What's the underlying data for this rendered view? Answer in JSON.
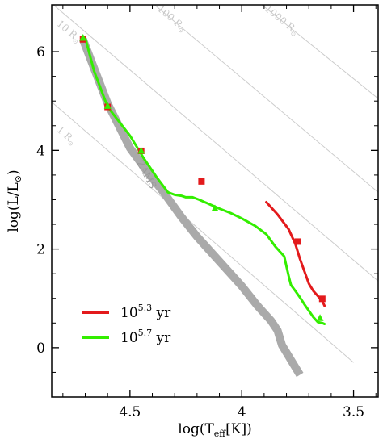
{
  "chart_data": {
    "type": "line",
    "xlabel_main": "log(T",
    "xlabel_sub": "eff",
    "xlabel_tail": "[K])",
    "ylabel_main": "log(L/L",
    "ylabel_sym": "⊙",
    "ylabel_tail": ")",
    "xlim": [
      4.85,
      3.39
    ],
    "ylim": [
      -1.0,
      6.95
    ],
    "x_ticks": [
      4.5,
      4.0,
      3.5
    ],
    "x_tick_labels": [
      "4.5",
      "4",
      "3.5"
    ],
    "y_ticks": [
      0,
      2,
      4,
      6
    ],
    "y_tick_labels": [
      "0",
      "2",
      "4",
      "6"
    ],
    "radius_lines": [
      {
        "label": "1 R",
        "sub": "⊙",
        "label_x": 4.83,
        "label_y": 4.4,
        "x": [
          4.85,
          3.5
        ],
        "y": [
          4.98,
          -0.3
        ]
      },
      {
        "label": "10 R",
        "sub": "⊙",
        "label_x": 4.83,
        "label_y": 6.55,
        "x": [
          4.85,
          3.39
        ],
        "y": [
          6.98,
          1.35
        ]
      },
      {
        "label": "100 R",
        "sub": "⊙",
        "label_x": 4.38,
        "label_y": 6.85,
        "x": [
          4.39,
          3.39
        ],
        "y": [
          6.95,
          3.15
        ]
      },
      {
        "label": "1000 R",
        "sub": "⊙",
        "label_x": 3.9,
        "label_y": 6.85,
        "x": [
          3.91,
          3.39
        ],
        "y": [
          6.95,
          5.05
        ]
      }
    ],
    "zams": {
      "label": "ZAMS",
      "label_x": 4.47,
      "label_y": 3.75,
      "x": [
        4.71,
        4.6,
        4.5,
        4.42,
        4.35,
        4.27,
        4.2,
        4.1,
        4.0,
        3.93,
        3.87,
        3.84,
        3.82,
        3.78,
        3.74
      ],
      "y": [
        6.25,
        4.95,
        4.05,
        3.55,
        3.15,
        2.65,
        2.25,
        1.75,
        1.25,
        0.85,
        0.55,
        0.35,
        0.05,
        -0.25,
        -0.55
      ]
    },
    "series": [
      {
        "name": "10",
        "exp": "5.3",
        "unit": " yr",
        "color": "#e31a1c",
        "x": [
          3.89,
          3.84,
          3.79,
          3.76,
          3.74,
          3.72,
          3.7,
          3.68,
          3.66,
          3.64,
          3.63
        ],
        "y": [
          2.95,
          2.7,
          2.4,
          2.1,
          1.8,
          1.55,
          1.3,
          1.15,
          1.05,
          0.95,
          0.85
        ],
        "markers": {
          "shape": "square",
          "x": [
            4.71,
            4.6,
            4.45,
            4.18,
            3.75,
            3.64
          ],
          "y": [
            6.25,
            4.88,
            3.99,
            3.37,
            2.15,
            0.99
          ]
        }
      },
      {
        "name": "10",
        "exp": "5.7",
        "unit": " yr",
        "color": "#33ee00",
        "x": [
          4.7,
          4.66,
          4.6,
          4.5,
          4.44,
          4.38,
          4.33,
          4.3,
          4.27,
          4.25,
          4.22,
          4.19,
          4.15,
          4.1,
          4.05,
          4.0,
          3.94,
          3.89,
          3.85,
          3.81,
          3.8,
          3.79,
          3.78,
          3.76,
          3.74,
          3.72,
          3.7,
          3.68,
          3.66,
          3.64,
          3.63
        ],
        "y": [
          6.28,
          5.6,
          4.88,
          4.3,
          3.85,
          3.45,
          3.15,
          3.1,
          3.08,
          3.05,
          3.05,
          3.0,
          2.92,
          2.82,
          2.73,
          2.62,
          2.47,
          2.3,
          2.05,
          1.85,
          1.65,
          1.45,
          1.27,
          1.15,
          1.02,
          0.88,
          0.75,
          0.62,
          0.52,
          0.5,
          0.48
        ],
        "markers": {
          "shape": "triangle",
          "x": [
            4.71,
            4.6,
            4.45,
            4.12,
            3.65
          ],
          "y": [
            6.28,
            4.9,
            3.99,
            2.82,
            0.6
          ]
        }
      }
    ],
    "legend": {
      "position": "bottom-left"
    }
  }
}
